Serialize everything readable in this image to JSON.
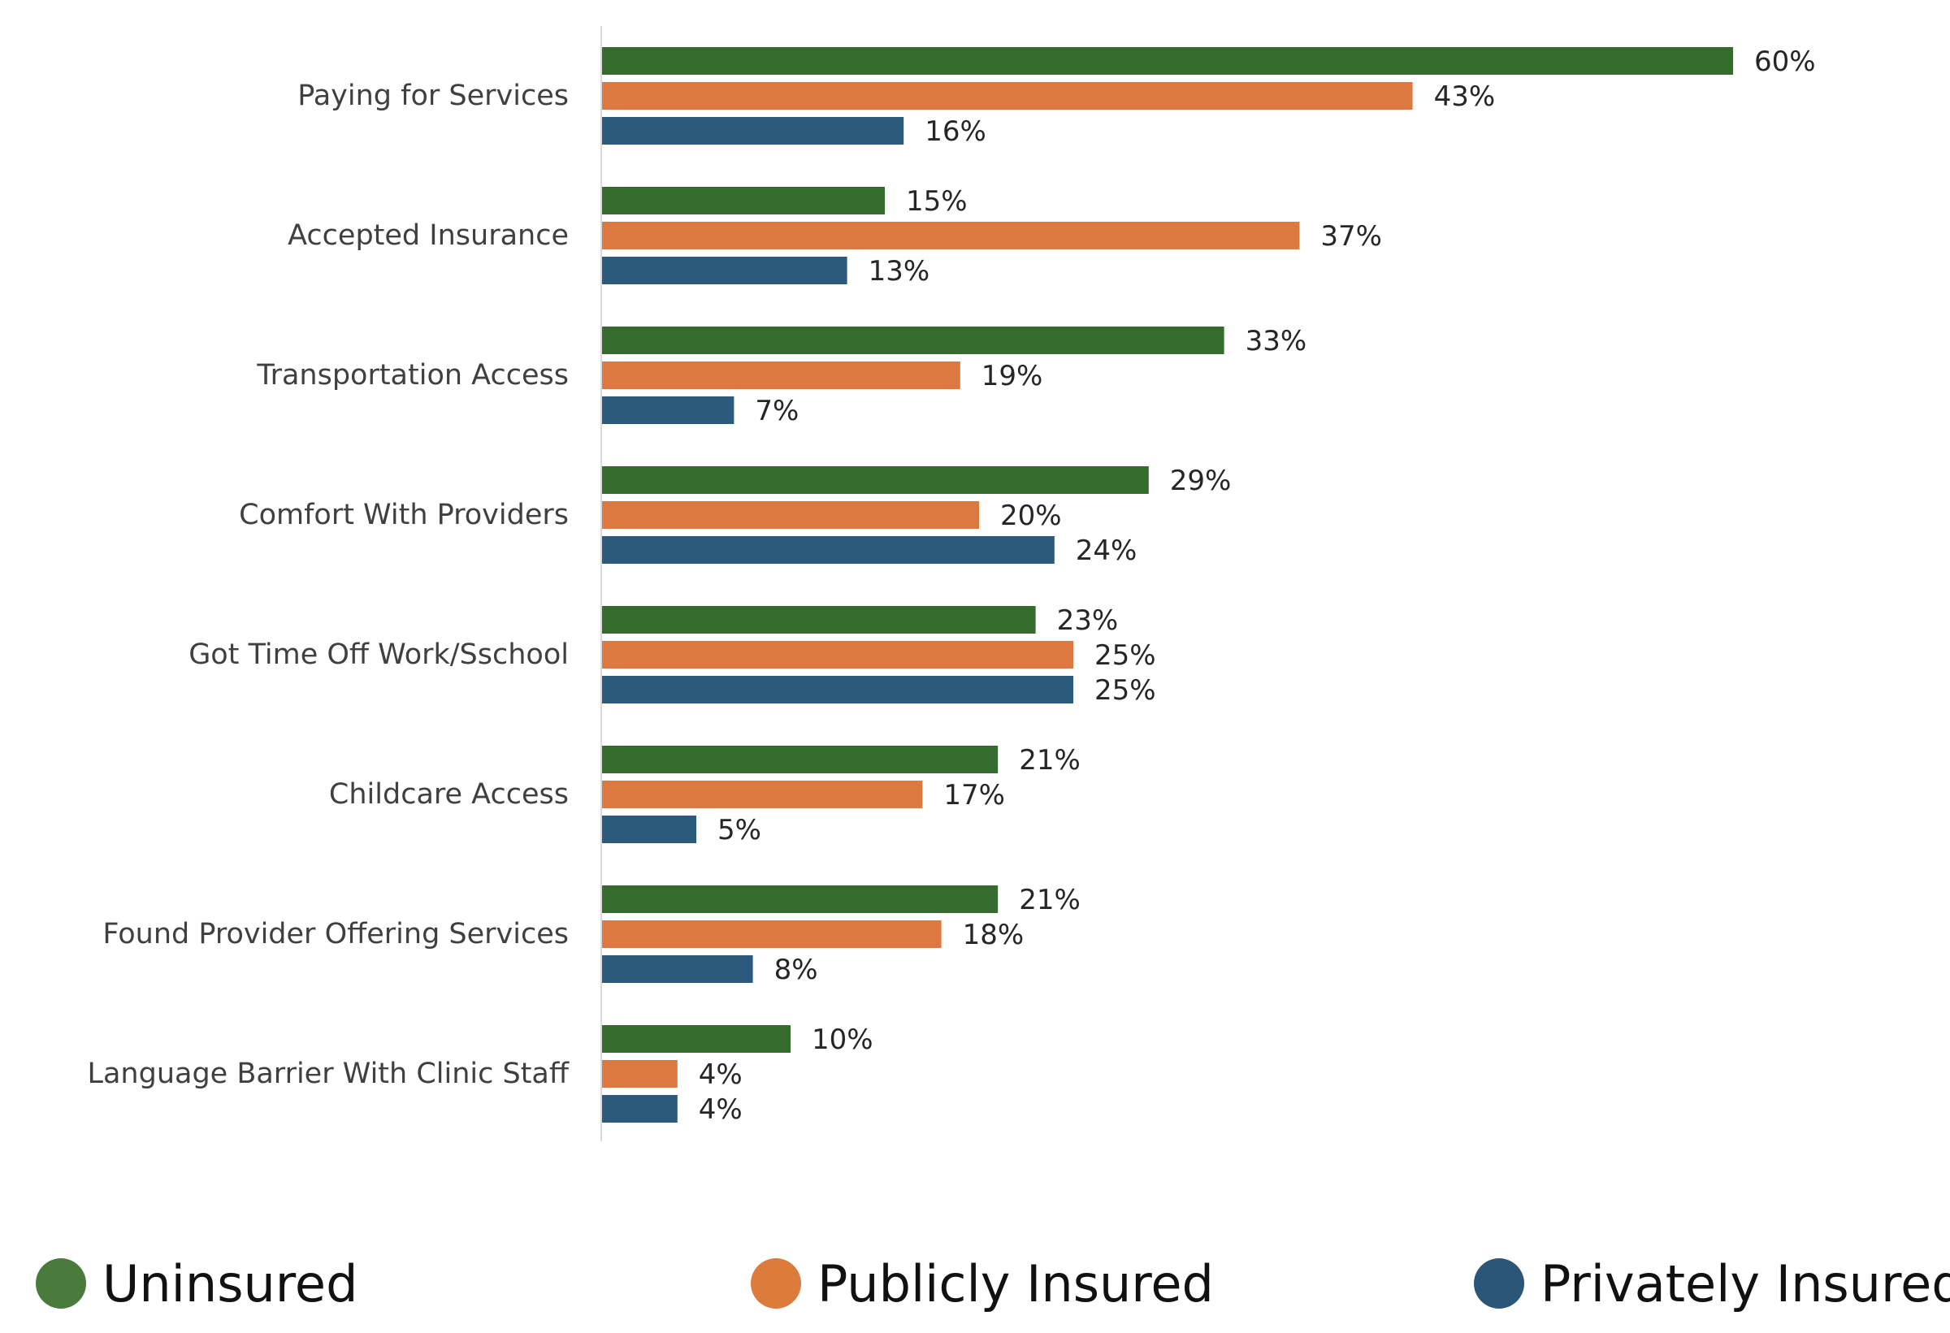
{
  "chart_data": {
    "type": "bar",
    "orientation": "horizontal",
    "title": "",
    "xlabel": "",
    "ylabel": "",
    "xlim": [
      0,
      60
    ],
    "grid": false,
    "legend_position": "bottom",
    "categories": [
      "Paying for Services",
      "Accepted Insurance",
      "Transportation Access",
      "Comfort With Providers",
      "Got Time Off Work/Sschool",
      "Childcare Access",
      "Found Provider Offering Services",
      "Language Barrier With Clinic Staff"
    ],
    "series": [
      {
        "name": "Uninsured",
        "color": "#366b2e",
        "values": [
          60,
          15,
          33,
          29,
          23,
          21,
          21,
          10
        ],
        "labels": [
          "60%",
          "15%",
          "33%",
          "29%",
          "23%",
          "21%",
          "21%",
          "10%"
        ]
      },
      {
        "name": "Publicly Insured",
        "color": "#db7940",
        "values": [
          43,
          37,
          19,
          20,
          25,
          17,
          18,
          4
        ],
        "labels": [
          "43%",
          "37%",
          "19%",
          "20%",
          "25%",
          "17%",
          "18%",
          "4%"
        ]
      },
      {
        "name": "Privately Insured",
        "color": "#2b5a7c",
        "values": [
          16,
          13,
          7,
          24,
          25,
          5,
          8,
          4
        ],
        "labels": [
          "16%",
          "13%",
          "7%",
          "24%",
          "25%",
          "5%",
          "8%",
          "4%"
        ]
      }
    ]
  },
  "legend": {
    "items": [
      {
        "label": "Uninsured",
        "color": "#4a7a3c"
      },
      {
        "label": "Publicly Insured",
        "color": "#db7b3c"
      },
      {
        "label": "Privately Insured",
        "color": "#2c5678"
      }
    ]
  }
}
